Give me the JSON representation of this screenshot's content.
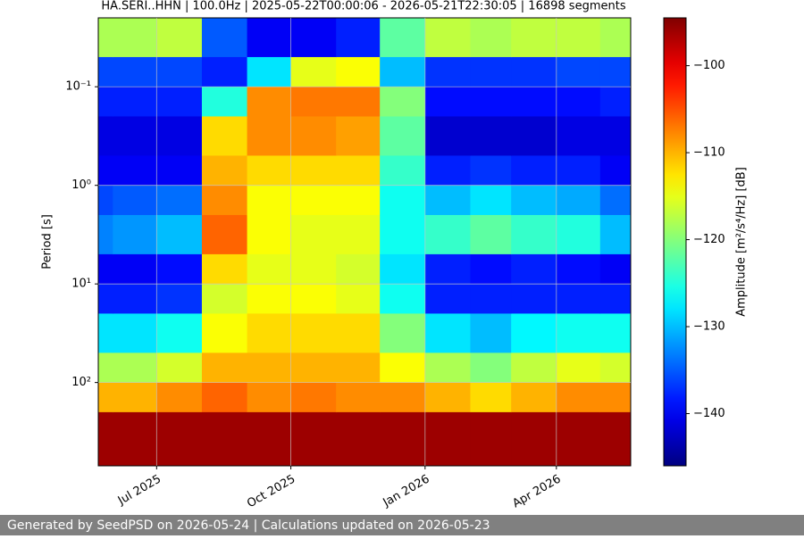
{
  "chart_data": {
    "type": "heatmap",
    "title": "HA.SERI..HHN | 100.0Hz | 2025-05-22T00:00:06 - 2026-05-21T22:30:05 | 16898 segments",
    "y_label": "Period [s]",
    "colorbar_label": "Amplitude [m²/s⁴/Hz] [dB]",
    "footer": "Generated by SeedPSD on 2026-05-24 | Calculations updated on 2026-05-23",
    "colormap": "jet",
    "log_y": true,
    "grid": true,
    "xlim": [
      "2025-05-22T00:00:06",
      "2026-05-21T22:30:05"
    ],
    "xticks": [
      {
        "value": "2025-07",
        "label": "Jul 2025"
      },
      {
        "value": "2025-10",
        "label": "Oct 2025"
      },
      {
        "value": "2026-01",
        "label": "Jan 2026"
      },
      {
        "value": "2026-04",
        "label": "Apr 2026"
      }
    ],
    "ylim": [
      700,
      0.02
    ],
    "yticks": [
      {
        "value": 0.1,
        "label": "10⁻¹"
      },
      {
        "value": 1,
        "label": "10⁰"
      },
      {
        "value": 10,
        "label": "10¹"
      },
      {
        "value": 100,
        "label": "10²"
      }
    ],
    "clim": [
      -146,
      -94.5
    ],
    "cticks": [
      {
        "value": -100,
        "label": "−100"
      },
      {
        "value": -110,
        "label": "−110"
      },
      {
        "value": -120,
        "label": "−120"
      },
      {
        "value": -130,
        "label": "−130"
      },
      {
        "value": -140,
        "label": "−140"
      }
    ],
    "x": [
      "2025-05",
      "2025-06",
      "2025-07",
      "2025-08",
      "2025-09",
      "2025-10",
      "2025-11",
      "2025-12",
      "2026-01",
      "2026-02",
      "2026-03",
      "2026-04",
      "2026-05"
    ],
    "period_bins": [
      0.02,
      0.05,
      0.1,
      0.2,
      0.5,
      1,
      2,
      5,
      10,
      20,
      50,
      100,
      200,
      700
    ],
    "z": [
      [
        -118,
        -118,
        -117,
        -135,
        -140,
        -140,
        -138,
        -122,
        -117,
        -118,
        -117,
        -117,
        -118
      ],
      [
        -136,
        -136,
        -136,
        -138,
        -128,
        -115,
        -114,
        -130,
        -137,
        -137,
        -137,
        -136,
        -136
      ],
      [
        -138,
        -138,
        -138,
        -125,
        -108,
        -107,
        -107,
        -120,
        -139,
        -139,
        -139,
        -139,
        -138
      ],
      [
        -141,
        -141,
        -141,
        -112,
        -108,
        -108,
        -109,
        -122,
        -142,
        -142,
        -142,
        -141,
        -141
      ],
      [
        -140,
        -140,
        -140,
        -110,
        -112,
        -112,
        -112,
        -124,
        -138,
        -137,
        -138,
        -138,
        -140
      ],
      [
        -136,
        -135,
        -134,
        -108,
        -114,
        -114,
        -114,
        -126,
        -130,
        -128,
        -130,
        -131,
        -134
      ],
      [
        -133,
        -132,
        -130,
        -106,
        -114,
        -115,
        -115,
        -126,
        -124,
        -122,
        -124,
        -125,
        -130
      ],
      [
        -140,
        -140,
        -139,
        -112,
        -115,
        -115,
        -116,
        -128,
        -138,
        -139,
        -138,
        -139,
        -140
      ],
      [
        -138,
        -138,
        -137,
        -116,
        -114,
        -114,
        -115,
        -126,
        -138,
        -138,
        -138,
        -138,
        -138
      ],
      [
        -128,
        -128,
        -126,
        -114,
        -112,
        -112,
        -112,
        -120,
        -128,
        -130,
        -127,
        -126,
        -126
      ],
      [
        -118,
        -118,
        -116,
        -110,
        -110,
        -110,
        -110,
        -114,
        -118,
        -120,
        -117,
        -115,
        -116
      ],
      [
        -110,
        -110,
        -108,
        -106,
        -108,
        -107,
        -108,
        -108,
        -110,
        -112,
        -110,
        -108,
        -108
      ],
      [
        -96,
        -96,
        -96,
        -96,
        -96,
        -96,
        -96,
        -96,
        -96,
        -96,
        -96,
        -96,
        -96
      ]
    ]
  }
}
